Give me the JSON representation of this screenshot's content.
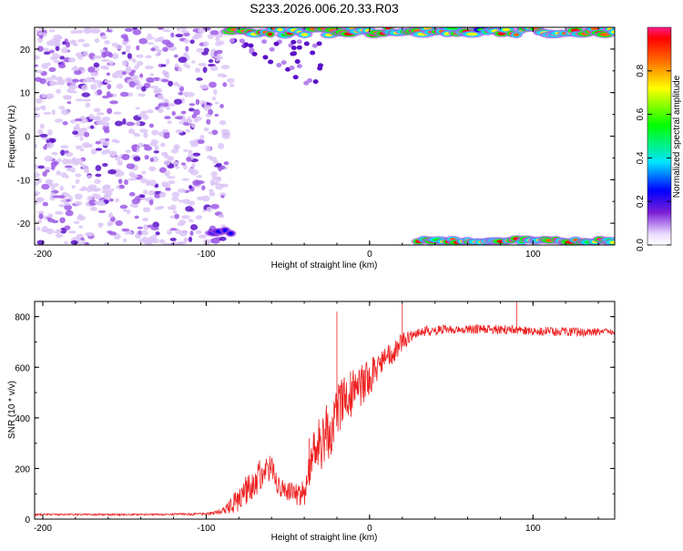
{
  "chart_title": "S233.2026.006.20.33.R03",
  "chart_data": [
    {
      "type": "heatmap",
      "title": "S233.2026.006.20.33.R03",
      "xlabel": "Height of straight line (km)",
      "ylabel": "Frequency (Hz)",
      "xlim": [
        -205,
        150
      ],
      "ylim": [
        -25,
        25
      ],
      "xticks": [
        -200,
        -100,
        0,
        100
      ],
      "xtick_labels": [
        "-200",
        "-100",
        "0",
        "100"
      ],
      "yticks": [
        -20,
        -10,
        0,
        10,
        20
      ],
      "ytick_labels": [
        "-20",
        "-10",
        "0",
        "10",
        "20"
      ],
      "colorbar": {
        "label": "Normalized spectral amplitude",
        "range": [
          0,
          1
        ],
        "ticks": [
          0.0,
          0.2,
          0.4,
          0.6,
          0.8
        ],
        "tick_labels": [
          "0.0",
          "0.2",
          "0.4",
          "0.6",
          "0.8"
        ]
      },
      "features": [
        {
          "name": "speckle noise",
          "x_range": [
            -205,
            -95
          ],
          "y_range": [
            -25,
            25
          ],
          "amplitude": 0.1
        },
        {
          "name": "upper trail",
          "x_range": [
            -85,
            150
          ],
          "freq": 24,
          "amplitude": 0.9
        },
        {
          "name": "lower trail",
          "x_range": [
            -95,
            -85
          ],
          "freq": -22,
          "amplitude": 0.3
        },
        {
          "name": "lower trail 2",
          "x_range": [
            30,
            150
          ],
          "freq": -24,
          "amplitude": 0.95
        }
      ]
    },
    {
      "type": "line",
      "xlabel": "Height of straight line (km)",
      "ylabel": "SNR (10 * v/v)",
      "xlim": [
        -205,
        150
      ],
      "ylim": [
        0,
        860
      ],
      "xticks": [
        -200,
        -100,
        0,
        100
      ],
      "xtick_labels": [
        "-200",
        "-100",
        "0",
        "100"
      ],
      "yticks": [
        0,
        200,
        400,
        600,
        800
      ],
      "ytick_labels": [
        "0",
        "200",
        "400",
        "600",
        "800"
      ],
      "series": [
        {
          "name": "SNR",
          "color": "#ee2222",
          "x": [
            -205,
            -150,
            -100,
            -90,
            -80,
            -70,
            -60,
            -55,
            -50,
            -45,
            -40,
            -35,
            -30,
            -25,
            -20,
            -15,
            -10,
            -5,
            0,
            5,
            10,
            15,
            20,
            25,
            30,
            40,
            50,
            60,
            80,
            100,
            120,
            150
          ],
          "y": [
            18,
            18,
            20,
            30,
            80,
            160,
            200,
            120,
            110,
            100,
            100,
            260,
            300,
            350,
            420,
            470,
            500,
            530,
            560,
            600,
            640,
            660,
            700,
            720,
            740,
            745,
            750,
            750,
            750,
            745,
            740,
            735
          ],
          "noise_amplitude": [
            8,
            8,
            10,
            25,
            120,
            150,
            120,
            80,
            80,
            100,
            120,
            200,
            250,
            280,
            250,
            220,
            200,
            180,
            160,
            120,
            100,
            90,
            80,
            60,
            50,
            45,
            40,
            40,
            40,
            40,
            40,
            40
          ],
          "peaks": [
            [
              -20,
              820
            ],
            [
              -37,
              320
            ],
            [
              20,
              860
            ],
            [
              90,
              860
            ]
          ]
        }
      ]
    }
  ]
}
